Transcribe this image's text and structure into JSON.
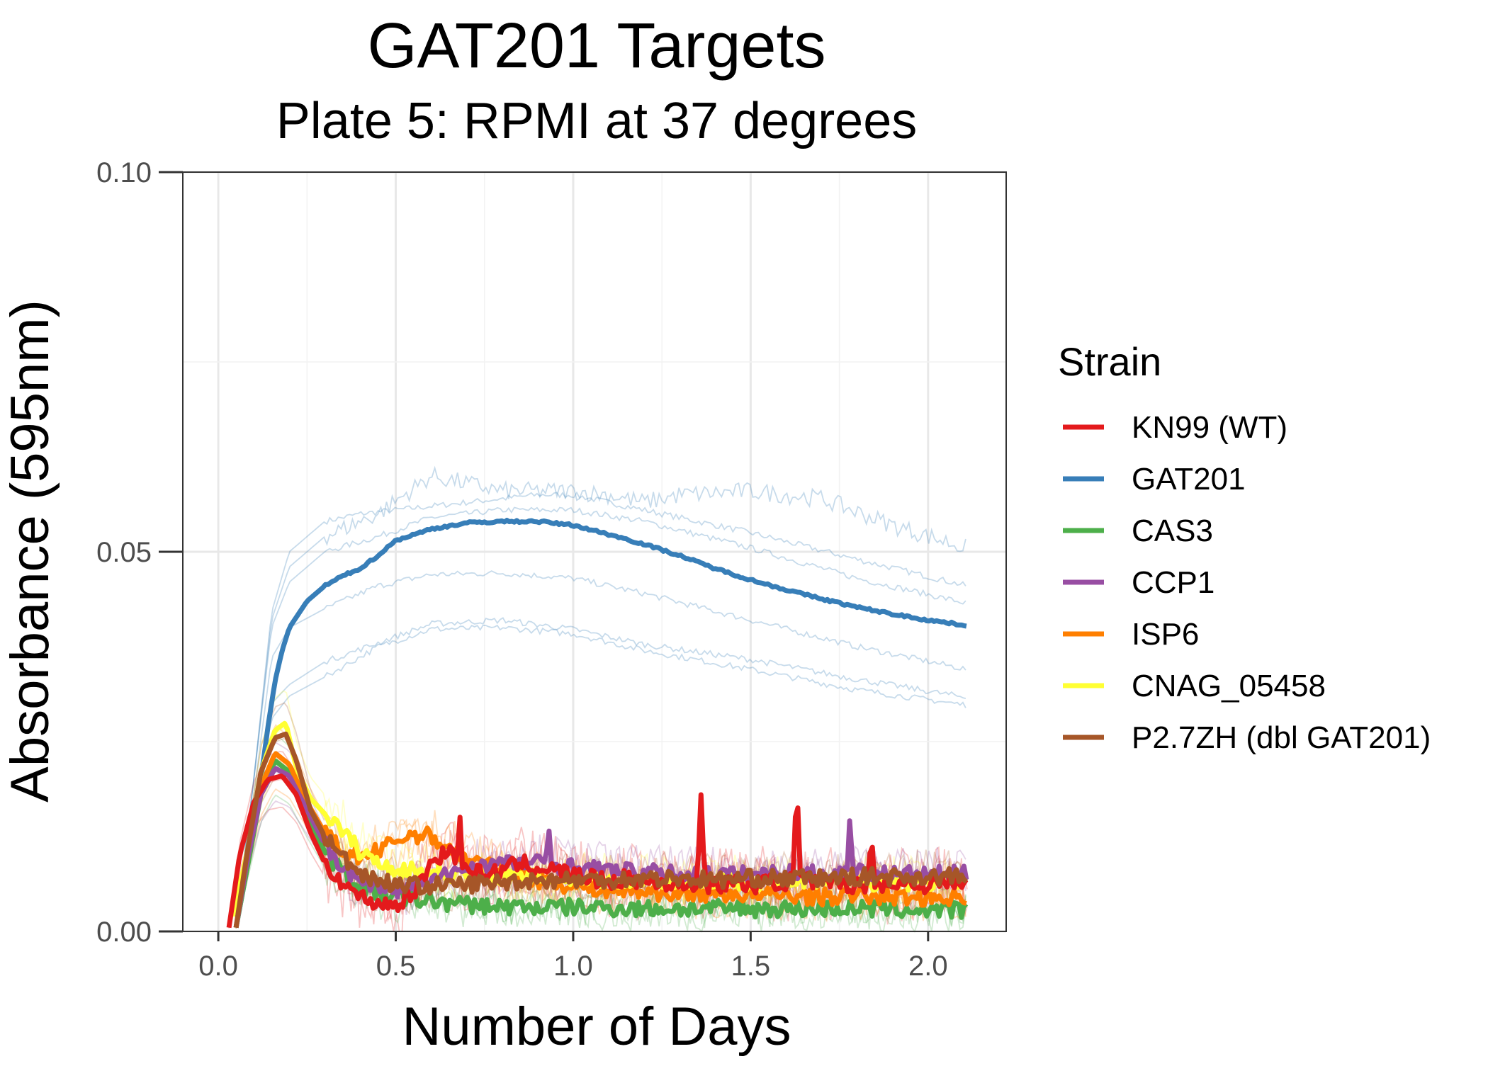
{
  "chart_data": {
    "type": "line",
    "title": "GAT201 Targets",
    "subtitle": "Plate 5: RPMI at 37 degrees",
    "xlabel": "Number of Days",
    "ylabel": "Absorbance (595nm)",
    "xlim": [
      -0.1,
      2.22
    ],
    "ylim": [
      0.0,
      0.1
    ],
    "x_ticks": [
      0.0,
      0.5,
      1.0,
      1.5,
      2.0
    ],
    "x_tick_labels": [
      "0.0",
      "0.5",
      "1.0",
      "1.5",
      "2.0"
    ],
    "y_ticks": [
      0.0,
      0.05,
      0.1
    ],
    "y_tick_labels": [
      "0.00",
      "0.05",
      "0.10"
    ],
    "grid": true,
    "legend": {
      "title": "Strain",
      "position": "right"
    },
    "series": [
      {
        "name": "KN99 (WT)",
        "color": "#e41a1c",
        "points": [
          [
            0.03,
            0.0005
          ],
          [
            0.06,
            0.01
          ],
          [
            0.1,
            0.017
          ],
          [
            0.14,
            0.02
          ],
          [
            0.18,
            0.0205
          ],
          [
            0.22,
            0.018
          ],
          [
            0.26,
            0.013
          ],
          [
            0.3,
            0.009
          ],
          [
            0.35,
            0.0065
          ],
          [
            0.4,
            0.0045
          ],
          [
            0.45,
            0.0038
          ],
          [
            0.5,
            0.0035
          ],
          [
            0.55,
            0.005
          ],
          [
            0.6,
            0.009
          ],
          [
            0.65,
            0.011
          ],
          [
            0.7,
            0.008
          ],
          [
            0.75,
            0.0075
          ],
          [
            0.8,
            0.008
          ],
          [
            0.85,
            0.009
          ],
          [
            0.9,
            0.0085
          ],
          [
            0.95,
            0.008
          ],
          [
            1.0,
            0.0075
          ],
          [
            1.05,
            0.007
          ],
          [
            1.1,
            0.0065
          ],
          [
            1.15,
            0.007
          ],
          [
            1.2,
            0.0065
          ],
          [
            1.25,
            0.0065
          ],
          [
            1.3,
            0.006
          ],
          [
            1.35,
            0.0065
          ],
          [
            1.4,
            0.006
          ],
          [
            1.45,
            0.0065
          ],
          [
            1.5,
            0.006
          ],
          [
            1.55,
            0.0065
          ],
          [
            1.6,
            0.0065
          ],
          [
            1.65,
            0.007
          ],
          [
            1.7,
            0.006
          ],
          [
            1.75,
            0.0065
          ],
          [
            1.8,
            0.006
          ],
          [
            1.85,
            0.0065
          ],
          [
            1.9,
            0.006
          ],
          [
            1.95,
            0.0065
          ],
          [
            2.0,
            0.006
          ],
          [
            2.05,
            0.0065
          ],
          [
            2.11,
            0.006
          ]
        ],
        "spikes": [
          [
            0.68,
            0.016
          ],
          [
            1.36,
            0.018
          ],
          [
            1.63,
            0.0198
          ],
          [
            1.84,
            0.0135
          ]
        ]
      },
      {
        "name": "GAT201",
        "color": "#377eb8",
        "points": [
          [
            0.05,
            0.0005
          ],
          [
            0.08,
            0.008
          ],
          [
            0.1,
            0.014
          ],
          [
            0.12,
            0.02
          ],
          [
            0.14,
            0.027
          ],
          [
            0.16,
            0.033
          ],
          [
            0.18,
            0.037
          ],
          [
            0.2,
            0.04
          ],
          [
            0.25,
            0.0435
          ],
          [
            0.3,
            0.0455
          ],
          [
            0.35,
            0.0468
          ],
          [
            0.4,
            0.0478
          ],
          [
            0.45,
            0.0495
          ],
          [
            0.5,
            0.0515
          ],
          [
            0.6,
            0.053
          ],
          [
            0.7,
            0.0538
          ],
          [
            0.8,
            0.054
          ],
          [
            0.9,
            0.054
          ],
          [
            1.0,
            0.0535
          ],
          [
            1.1,
            0.0523
          ],
          [
            1.2,
            0.051
          ],
          [
            1.3,
            0.0495
          ],
          [
            1.4,
            0.0478
          ],
          [
            1.5,
            0.0463
          ],
          [
            1.6,
            0.045
          ],
          [
            1.7,
            0.0438
          ],
          [
            1.8,
            0.0427
          ],
          [
            1.9,
            0.0418
          ],
          [
            2.0,
            0.041
          ],
          [
            2.11,
            0.0403
          ]
        ]
      },
      {
        "name": "CAS3",
        "color": "#4daf4a",
        "points": [
          [
            0.05,
            0.0005
          ],
          [
            0.08,
            0.008
          ],
          [
            0.12,
            0.018
          ],
          [
            0.16,
            0.0225
          ],
          [
            0.2,
            0.021
          ],
          [
            0.25,
            0.0155
          ],
          [
            0.3,
            0.0105
          ],
          [
            0.35,
            0.0078
          ],
          [
            0.4,
            0.006
          ],
          [
            0.45,
            0.005
          ],
          [
            0.5,
            0.0045
          ],
          [
            0.6,
            0.004
          ],
          [
            0.7,
            0.0035
          ],
          [
            0.8,
            0.0033
          ],
          [
            0.9,
            0.0032
          ],
          [
            1.0,
            0.0032
          ],
          [
            1.2,
            0.003
          ],
          [
            1.4,
            0.003
          ],
          [
            1.6,
            0.003
          ],
          [
            1.8,
            0.003
          ],
          [
            2.0,
            0.0028
          ],
          [
            2.11,
            0.0028
          ]
        ]
      },
      {
        "name": "CCP1",
        "color": "#984ea3",
        "points": [
          [
            0.05,
            0.0005
          ],
          [
            0.08,
            0.009
          ],
          [
            0.12,
            0.018
          ],
          [
            0.16,
            0.0215
          ],
          [
            0.2,
            0.0205
          ],
          [
            0.25,
            0.016
          ],
          [
            0.3,
            0.0115
          ],
          [
            0.35,
            0.0085
          ],
          [
            0.4,
            0.0068
          ],
          [
            0.45,
            0.0058
          ],
          [
            0.5,
            0.0055
          ],
          [
            0.6,
            0.0065
          ],
          [
            0.7,
            0.0085
          ],
          [
            0.8,
            0.009
          ],
          [
            0.9,
            0.009
          ],
          [
            1.0,
            0.0085
          ],
          [
            1.1,
            0.008
          ],
          [
            1.2,
            0.0078
          ],
          [
            1.3,
            0.0075
          ],
          [
            1.4,
            0.0075
          ],
          [
            1.5,
            0.0075
          ],
          [
            1.6,
            0.0078
          ],
          [
            1.7,
            0.0075
          ],
          [
            1.8,
            0.0078
          ],
          [
            1.9,
            0.0075
          ],
          [
            2.0,
            0.0075
          ],
          [
            2.11,
            0.0075
          ]
        ],
        "spikes": [
          [
            0.93,
            0.015
          ],
          [
            1.78,
            0.0155
          ]
        ]
      },
      {
        "name": "ISP6",
        "color": "#ff7f00",
        "points": [
          [
            0.05,
            0.0005
          ],
          [
            0.08,
            0.009
          ],
          [
            0.12,
            0.019
          ],
          [
            0.16,
            0.0235
          ],
          [
            0.2,
            0.022
          ],
          [
            0.25,
            0.017
          ],
          [
            0.3,
            0.013
          ],
          [
            0.35,
            0.0105
          ],
          [
            0.4,
            0.0098
          ],
          [
            0.45,
            0.0105
          ],
          [
            0.5,
            0.012
          ],
          [
            0.55,
            0.0128
          ],
          [
            0.6,
            0.0125
          ],
          [
            0.65,
            0.011
          ],
          [
            0.7,
            0.0095
          ],
          [
            0.8,
            0.008
          ],
          [
            0.9,
            0.0068
          ],
          [
            1.0,
            0.006
          ],
          [
            1.1,
            0.0055
          ],
          [
            1.2,
            0.0052
          ],
          [
            1.3,
            0.005
          ],
          [
            1.4,
            0.005
          ],
          [
            1.5,
            0.0048
          ],
          [
            1.6,
            0.0048
          ],
          [
            1.7,
            0.0045
          ],
          [
            1.8,
            0.0048
          ],
          [
            1.9,
            0.0045
          ],
          [
            2.0,
            0.0045
          ],
          [
            2.11,
            0.0045
          ]
        ]
      },
      {
        "name": "CNAG_05458",
        "color": "#ffff33",
        "points": [
          [
            0.04,
            0.002
          ],
          [
            0.08,
            0.01
          ],
          [
            0.12,
            0.021
          ],
          [
            0.16,
            0.0265
          ],
          [
            0.19,
            0.0275
          ],
          [
            0.22,
            0.0215
          ],
          [
            0.26,
            0.0175
          ],
          [
            0.3,
            0.0155
          ],
          [
            0.35,
            0.0132
          ],
          [
            0.4,
            0.0105
          ],
          [
            0.45,
            0.009
          ],
          [
            0.5,
            0.0082
          ],
          [
            0.6,
            0.0078
          ],
          [
            0.7,
            0.0075
          ],
          [
            0.8,
            0.0072
          ],
          [
            0.9,
            0.007
          ],
          [
            1.0,
            0.007
          ],
          [
            1.1,
            0.0068
          ],
          [
            1.2,
            0.0068
          ],
          [
            1.3,
            0.0065
          ],
          [
            1.4,
            0.0068
          ],
          [
            1.5,
            0.0065
          ],
          [
            1.6,
            0.0065
          ],
          [
            1.7,
            0.0065
          ],
          [
            1.8,
            0.0065
          ],
          [
            1.9,
            0.0065
          ],
          [
            2.0,
            0.0065
          ],
          [
            2.11,
            0.0065
          ]
        ]
      },
      {
        "name": "P2.7ZH (dbl GAT201)",
        "color": "#a65628",
        "points": [
          [
            0.05,
            0.0005
          ],
          [
            0.08,
            0.01
          ],
          [
            0.12,
            0.021
          ],
          [
            0.16,
            0.0255
          ],
          [
            0.19,
            0.026
          ],
          [
            0.22,
            0.0225
          ],
          [
            0.26,
            0.016
          ],
          [
            0.3,
            0.0125
          ],
          [
            0.35,
            0.0098
          ],
          [
            0.4,
            0.0078
          ],
          [
            0.45,
            0.0068
          ],
          [
            0.5,
            0.0062
          ],
          [
            0.6,
            0.006
          ],
          [
            0.7,
            0.0062
          ],
          [
            0.8,
            0.0065
          ],
          [
            0.9,
            0.0068
          ],
          [
            1.0,
            0.0068
          ],
          [
            1.1,
            0.0068
          ],
          [
            1.2,
            0.007
          ],
          [
            1.3,
            0.007
          ],
          [
            1.4,
            0.0068
          ],
          [
            1.5,
            0.007
          ],
          [
            1.6,
            0.007
          ],
          [
            1.7,
            0.007
          ],
          [
            1.8,
            0.0072
          ],
          [
            1.9,
            0.0072
          ],
          [
            2.0,
            0.0072
          ],
          [
            2.11,
            0.0072
          ]
        ]
      }
    ],
    "replicates": [
      {
        "color": "#377eb8",
        "points": [
          [
            0.05,
            0.001
          ],
          [
            0.1,
            0.02
          ],
          [
            0.15,
            0.042
          ],
          [
            0.2,
            0.05
          ],
          [
            0.3,
            0.054
          ],
          [
            0.4,
            0.055
          ],
          [
            0.5,
            0.0555
          ],
          [
            0.7,
            0.0565
          ],
          [
            0.9,
            0.0575
          ],
          [
            1.0,
            0.0575
          ],
          [
            1.2,
            0.0555
          ],
          [
            1.5,
            0.0525
          ],
          [
            1.8,
            0.049
          ],
          [
            2.11,
            0.0455
          ]
        ]
      },
      {
        "color": "#377eb8",
        "points": [
          [
            0.05,
            0.001
          ],
          [
            0.1,
            0.02
          ],
          [
            0.15,
            0.04
          ],
          [
            0.2,
            0.046
          ],
          [
            0.3,
            0.05
          ],
          [
            0.45,
            0.052
          ],
          [
            0.6,
            0.0545
          ],
          [
            0.8,
            0.0555
          ],
          [
            1.0,
            0.0555
          ],
          [
            1.2,
            0.054
          ],
          [
            1.5,
            0.0505
          ],
          [
            1.8,
            0.0465
          ],
          [
            2.11,
            0.0432
          ]
        ]
      },
      {
        "color": "#377eb8",
        "points": [
          [
            0.05,
            0.001
          ],
          [
            0.1,
            0.018
          ],
          [
            0.15,
            0.036
          ],
          [
            0.2,
            0.04
          ],
          [
            0.3,
            0.0425
          ],
          [
            0.45,
            0.0455
          ],
          [
            0.6,
            0.047
          ],
          [
            0.8,
            0.0472
          ],
          [
            1.0,
            0.0465
          ],
          [
            1.2,
            0.0445
          ],
          [
            1.5,
            0.041
          ],
          [
            1.8,
            0.0375
          ],
          [
            2.11,
            0.0345
          ]
        ]
      },
      {
        "color": "#377eb8",
        "points": [
          [
            0.05,
            0.001
          ],
          [
            0.1,
            0.016
          ],
          [
            0.15,
            0.028
          ],
          [
            0.2,
            0.031
          ],
          [
            0.3,
            0.0335
          ],
          [
            0.45,
            0.0375
          ],
          [
            0.6,
            0.0398
          ],
          [
            0.8,
            0.04
          ],
          [
            1.0,
            0.0392
          ],
          [
            1.2,
            0.037
          ],
          [
            1.5,
            0.0345
          ],
          [
            1.8,
            0.0318
          ],
          [
            2.11,
            0.0298
          ]
        ]
      },
      {
        "color": "#377eb8",
        "points": [
          [
            0.05,
            0.001
          ],
          [
            0.1,
            0.017
          ],
          [
            0.15,
            0.03
          ],
          [
            0.2,
            0.0325
          ],
          [
            0.3,
            0.0355
          ],
          [
            0.45,
            0.038
          ],
          [
            0.6,
            0.0405
          ],
          [
            0.8,
            0.041
          ],
          [
            1.0,
            0.0398
          ],
          [
            1.2,
            0.0378
          ],
          [
            1.5,
            0.0358
          ],
          [
            1.8,
            0.0332
          ],
          [
            2.11,
            0.0308
          ]
        ]
      },
      {
        "color": "#377eb8",
        "points": [
          [
            0.05,
            0.001
          ],
          [
            0.1,
            0.02
          ],
          [
            0.15,
            0.041
          ],
          [
            0.2,
            0.048
          ],
          [
            0.3,
            0.052
          ],
          [
            0.45,
            0.055
          ],
          [
            0.6,
            0.06
          ],
          [
            0.8,
            0.058
          ],
          [
            1.0,
            0.058
          ],
          [
            1.1,
            0.0575
          ],
          [
            1.2,
            0.0565
          ],
          [
            1.3,
            0.0575
          ],
          [
            1.5,
            0.058
          ],
          [
            1.7,
            0.057
          ],
          [
            1.9,
            0.0535
          ],
          [
            2.11,
            0.0505
          ]
        ]
      }
    ]
  }
}
